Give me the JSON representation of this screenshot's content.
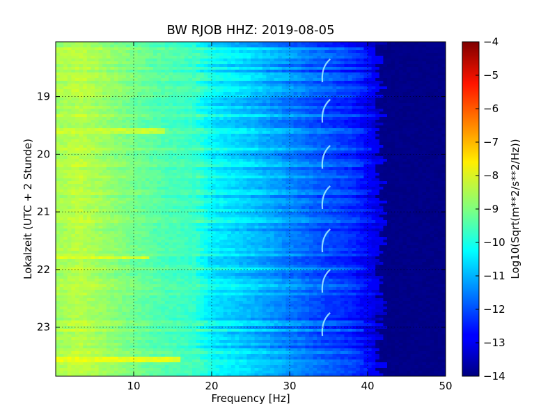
{
  "chart_data": {
    "type": "heatmap",
    "title": "BW RJOB HHZ: 2019-08-05",
    "xlabel": "Frequency [Hz]",
    "ylabel": "Lokalzeit (UTC + 2 Stunde)",
    "xlim": [
      0,
      50
    ],
    "ylim": [
      18.05,
      23.85
    ],
    "x_ticks": [
      10,
      20,
      30,
      40,
      50
    ],
    "y_ticks": [
      19,
      20,
      21,
      22,
      23
    ],
    "grid": true,
    "colormap": "jet",
    "colorbar": {
      "label": "Log10(Sqrt(m**2/s**2/Hz))",
      "range": [
        -14,
        -4
      ],
      "ticks": [
        -4,
        -5,
        -6,
        -7,
        -8,
        -9,
        -10,
        -11,
        -12,
        -13,
        -14
      ]
    },
    "frequency_profile": [
      {
        "freq": 0.5,
        "value": -8.6
      },
      {
        "freq": 3,
        "value": -8.4
      },
      {
        "freq": 8,
        "value": -8.9
      },
      {
        "freq": 13,
        "value": -9.4
      },
      {
        "freq": 18,
        "value": -9.7
      },
      {
        "freq": 20,
        "value": -10.3
      },
      {
        "freq": 25,
        "value": -10.8
      },
      {
        "freq": 30,
        "value": -11.4
      },
      {
        "freq": 34,
        "value": -11.9
      },
      {
        "freq": 38,
        "value": -12.3
      },
      {
        "freq": 41,
        "value": -12.9
      },
      {
        "freq": 42.5,
        "value": -14.0
      },
      {
        "freq": 50,
        "value": -14.0
      }
    ],
    "bright_bands": [
      {
        "time": 19.6,
        "freq_max": 14,
        "intensity": -8.3
      },
      {
        "time": 21.8,
        "freq_max": 12,
        "intensity": -8.1
      },
      {
        "time": 23.55,
        "freq_max": 16,
        "intensity": -8.0
      }
    ],
    "whistle_tracks": [
      {
        "time_start": 18.35,
        "time_end": 18.75,
        "freq": 34.5
      },
      {
        "time_start": 19.05,
        "time_end": 19.45,
        "freq": 34.5
      },
      {
        "time_start": 19.85,
        "time_end": 20.25,
        "freq": 34.5
      },
      {
        "time_start": 20.55,
        "time_end": 20.95,
        "freq": 34.5
      },
      {
        "time_start": 21.3,
        "time_end": 21.7,
        "freq": 34.5
      },
      {
        "time_start": 22.0,
        "time_end": 22.4,
        "freq": 34.5
      },
      {
        "time_start": 22.75,
        "time_end": 23.15,
        "freq": 34.5
      }
    ]
  }
}
